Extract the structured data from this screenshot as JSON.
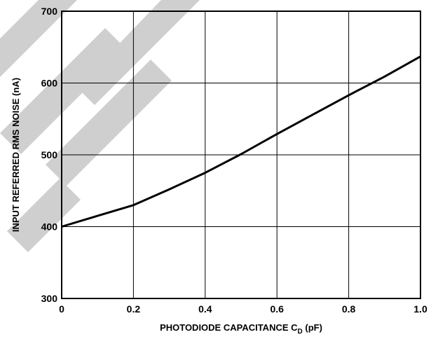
{
  "chart_data": {
    "type": "line",
    "xlabel": "PHOTODIODE CAPACITANCE C",
    "xlabel_sub": "D",
    "xlabel_unit": " (pF)",
    "ylabel": "INPUT REFERRED RMS NOISE (nA)",
    "xlim": [
      0,
      1.0
    ],
    "ylim": [
      300,
      700
    ],
    "x_ticks": [
      0,
      0.2,
      0.4,
      0.6,
      0.8,
      1.0
    ],
    "x_tick_labels": [
      "0",
      "0.2",
      "0.4",
      "0.6",
      "0.8",
      "1.0"
    ],
    "y_ticks": [
      300,
      400,
      500,
      600,
      700
    ],
    "y_tick_labels": [
      "300",
      "400",
      "500",
      "600",
      "700"
    ],
    "grid": true,
    "series": [
      {
        "x": [
          0,
          0.1,
          0.2,
          0.3,
          0.4,
          0.5,
          0.6,
          0.7,
          0.8,
          0.9,
          1.0
        ],
        "y": [
          400,
          415,
          430,
          452,
          475,
          501,
          529,
          556,
          583,
          609,
          637
        ]
      }
    ],
    "line_color": "#000000"
  }
}
